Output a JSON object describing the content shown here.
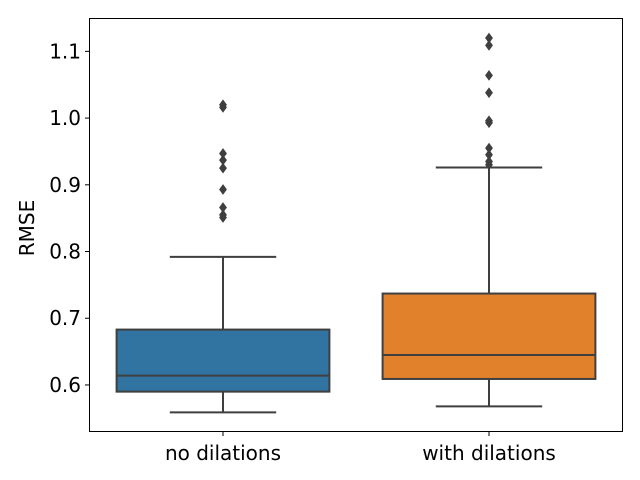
{
  "chart_data": {
    "type": "box",
    "ylabel": "RMSE",
    "xlabel": "",
    "ylim": [
      0.531,
      1.15
    ],
    "yticks": [
      0.6,
      0.7,
      0.8,
      0.9,
      1.0,
      1.1
    ],
    "ytick_labels": [
      "0.6",
      "0.7",
      "0.8",
      "0.9",
      "1.0",
      "1.1"
    ],
    "grid": false,
    "categories": [
      "no dilations",
      "with dilations"
    ],
    "boxes": [
      {
        "category": "no dilations",
        "color": "#3274a1",
        "whisker_low": 0.559,
        "q1": 0.59,
        "median": 0.614,
        "q3": 0.683,
        "whisker_high": 0.792,
        "outliers": [
          0.851,
          0.855,
          0.866,
          0.893,
          0.925,
          0.937,
          0.947,
          1.016,
          1.02
        ]
      },
      {
        "category": "with dilations",
        "color": "#e1812c",
        "whisker_low": 0.568,
        "q1": 0.609,
        "median": 0.645,
        "q3": 0.737,
        "whisker_high": 0.926,
        "outliers": [
          0.93,
          0.935,
          0.945,
          0.955,
          0.993,
          0.996,
          1.038,
          1.064,
          1.109,
          1.12
        ]
      }
    ]
  }
}
